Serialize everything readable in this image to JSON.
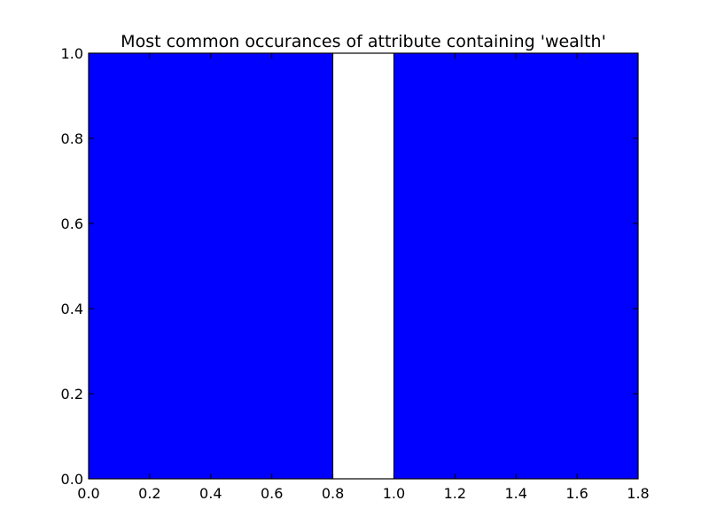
{
  "chart_data": {
    "type": "bar",
    "title": "Most common occurances of attribute containing 'wealth'",
    "xlabel": "",
    "ylabel": "",
    "xlim": [
      0.0,
      1.8
    ],
    "ylim": [
      0.0,
      1.0
    ],
    "bars": [
      {
        "x_start": 0.0,
        "x_end": 0.8,
        "value": 1.0
      },
      {
        "x_start": 1.0,
        "x_end": 1.8,
        "value": 1.0
      }
    ],
    "x_ticks": [
      0.0,
      0.2,
      0.4,
      0.6,
      0.8,
      1.0,
      1.2,
      1.4,
      1.6,
      1.8
    ],
    "x_tick_labels": [
      "0.0",
      "0.2",
      "0.4",
      "0.6",
      "0.8",
      "1.0",
      "1.2",
      "1.4",
      "1.6",
      "1.8"
    ],
    "y_ticks": [
      0.0,
      0.2,
      0.4,
      0.6,
      0.8,
      1.0
    ],
    "y_tick_labels": [
      "0.0",
      "0.2",
      "0.4",
      "0.6",
      "0.8",
      "1.0"
    ],
    "grid": false,
    "colors": {
      "bar_fill": "#0000ff",
      "bar_edge": "#000000",
      "axes_edge": "#000000",
      "background": "#ffffff"
    }
  }
}
